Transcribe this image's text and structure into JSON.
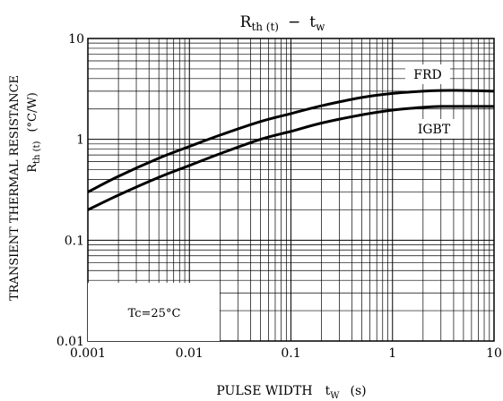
{
  "chart_data": {
    "type": "line",
    "title": {
      "main": "R",
      "main_sub": "th (t)",
      "dash": "−",
      "var": "t",
      "var_sub": "w"
    },
    "xlabel": {
      "main": "PULSE WIDTH",
      "var": "t",
      "var_sub": "W",
      "unit": "(s)"
    },
    "ylabel": {
      "line1": "TRANSIENT THERMAL RESISTANCE",
      "main": "R",
      "main_sub": "th (t)",
      "unit": "(°C/W)"
    },
    "x_scale": "log",
    "y_scale": "log",
    "xlim": [
      0.001,
      10
    ],
    "ylim": [
      0.01,
      10
    ],
    "x_ticks": [
      {
        "v": 0.001,
        "label": "0.001"
      },
      {
        "v": 0.01,
        "label": "0.01"
      },
      {
        "v": 0.1,
        "label": "0.1"
      },
      {
        "v": 1,
        "label": "1"
      },
      {
        "v": 10,
        "label": "10"
      }
    ],
    "y_ticks": [
      {
        "v": 0.01,
        "label": "0.01"
      },
      {
        "v": 0.1,
        "label": "0.1"
      },
      {
        "v": 1,
        "label": "1"
      },
      {
        "v": 10,
        "label": "10"
      }
    ],
    "grid": true,
    "annotation": "Tc=25°C",
    "series": [
      {
        "name": "FRD",
        "x": [
          0.001,
          0.002,
          0.005,
          0.01,
          0.02,
          0.05,
          0.1,
          0.2,
          0.5,
          1,
          2,
          3,
          5,
          10
        ],
        "y": [
          0.3,
          0.43,
          0.65,
          0.85,
          1.1,
          1.5,
          1.8,
          2.15,
          2.6,
          2.85,
          3.0,
          3.05,
          3.05,
          3.0
        ]
      },
      {
        "name": "IGBT",
        "x": [
          0.001,
          0.002,
          0.005,
          0.01,
          0.02,
          0.05,
          0.1,
          0.2,
          0.5,
          1,
          2,
          3,
          5,
          10
        ],
        "y": [
          0.2,
          0.28,
          0.42,
          0.55,
          0.72,
          1.0,
          1.2,
          1.45,
          1.75,
          1.95,
          2.08,
          2.12,
          2.12,
          2.12
        ]
      }
    ]
  }
}
